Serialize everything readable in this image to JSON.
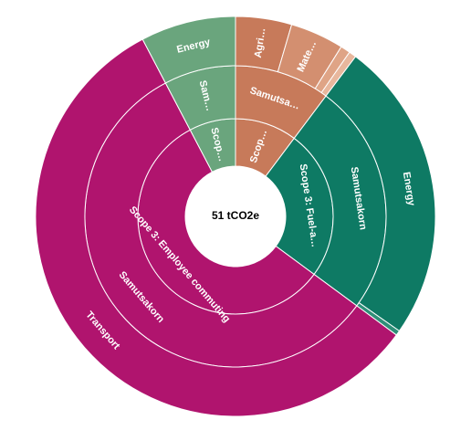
{
  "chart_data": {
    "type": "sunburst",
    "center_label": "51 tCO2e",
    "nodes": [
      {
        "label": "Scop…",
        "value": 5.2,
        "color": "#c77a5a",
        "children": [
          {
            "label": "Samutsa…",
            "value": 5.2,
            "color": "#c77a5a",
            "children": [
              {
                "label": "Agri…",
                "value": 2.3,
                "color": "#c77a5a"
              },
              {
                "label": "Mate…",
                "value": 2.2,
                "color": "#d38f70"
              },
              {
                "label": null,
                "value": 0.4,
                "color": "#dfa486"
              },
              {
                "label": null,
                "value": 0.3,
                "color": "#e8b79d"
              }
            ]
          }
        ]
      },
      {
        "label": "Scope 3: Fuel-a…",
        "value": 12.6,
        "color": "#0e7a64",
        "children": [
          {
            "label": "Samutsakorn",
            "value": 12.6,
            "color": "#0e7a64",
            "children": [
              {
                "label": "Energy",
                "value": 12.4,
                "color": "#0e7a64"
              },
              {
                "label": null,
                "value": 0.2,
                "color": "#2f8f78"
              }
            ]
          }
        ]
      },
      {
        "label": "Scope 3: Employee commuting",
        "value": 29,
        "color": "#b0146e",
        "children": [
          {
            "label": "Samutsakorn",
            "value": 29,
            "color": "#b0146e",
            "children": [
              {
                "label": "Transport",
                "value": 29,
                "color": "#b0146e"
              }
            ]
          }
        ]
      },
      {
        "label": "Scop…",
        "value": 3.9,
        "color": "#6aa57d",
        "children": [
          {
            "label": "Sam…",
            "value": 3.9,
            "color": "#6aa57d",
            "children": [
              {
                "label": "Energy",
                "value": 3.9,
                "color": "#6aa57d"
              }
            ]
          }
        ]
      }
    ]
  }
}
